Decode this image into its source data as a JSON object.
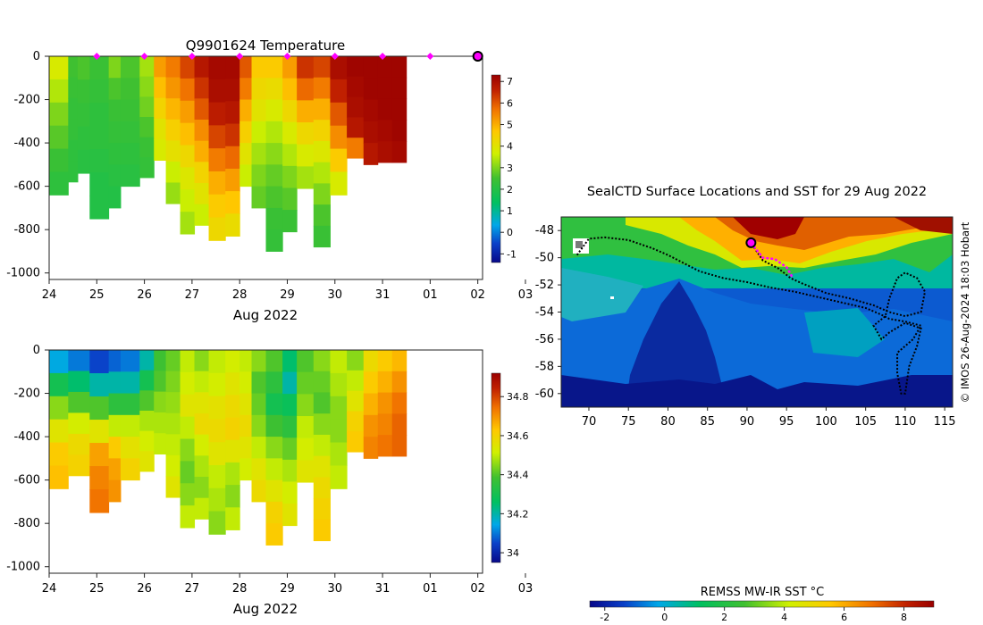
{
  "temperature_panel": {
    "title": "Q9901624  Temperature",
    "xlabel": "Aug 2022",
    "colorbar_ticks": [
      "-1",
      "0",
      "1",
      "2",
      "3",
      "4",
      "5",
      "6",
      "7"
    ]
  },
  "salinity_panel": {
    "xlabel": "Aug 2022",
    "colorbar_ticks": [
      "34",
      "34.2",
      "34.4",
      "34.6",
      "34.8"
    ]
  },
  "map_panel": {
    "title": "SealCTD Surface Locations and SST for 29 Aug 2022",
    "credit": "© IMOS 26-Aug-2024 18:03 Hobart",
    "sst_colorbar_label": "REMSS MW-IR SST °C",
    "sst_colorbar_ticks": [
      "-2",
      "0",
      "2",
      "4",
      "6",
      "8"
    ]
  },
  "chart_data": [
    {
      "type": "heatmap",
      "name": "depth-time temperature section",
      "title": "Q9901624  Temperature",
      "xlabel": "Aug 2022",
      "ylabel": "",
      "x_ticks": [
        "24",
        "25",
        "26",
        "27",
        "28",
        "29",
        "30",
        "31",
        "01",
        "02",
        "03"
      ],
      "y_ticks": [
        "0",
        "-200",
        "-400",
        "-600",
        "-800",
        "-1000"
      ],
      "xlim": [
        0,
        9.1
      ],
      "ylim": [
        -1030,
        0
      ],
      "colorbar": {
        "min": -1.4,
        "max": 7.3,
        "ticks": [
          -1,
          0,
          1,
          2,
          3,
          4,
          5,
          6,
          7
        ]
      },
      "profiles": [
        {
          "t": 0.0,
          "bottom": -640,
          "temps": [
            3.8,
            3.4,
            3.0,
            2.7,
            2.4,
            2.2
          ]
        },
        {
          "t": 0.4,
          "bottom": -580,
          "temps": [
            2.5,
            2.4,
            2.3,
            2.3,
            2.2,
            2.2
          ]
        },
        {
          "t": 0.6,
          "bottom": -540,
          "temps": [
            2.6,
            2.4,
            2.3,
            2.2,
            2.1
          ]
        },
        {
          "t": 0.85,
          "bottom": -750,
          "temps": [
            2.4,
            2.3,
            2.2,
            2.2,
            2.1,
            2.0,
            2.0
          ]
        },
        {
          "t": 1.25,
          "bottom": -700,
          "temps": [
            3.0,
            2.6,
            2.4,
            2.3,
            2.2,
            2.1,
            2.0
          ]
        },
        {
          "t": 1.5,
          "bottom": -600,
          "temps": [
            2.6,
            2.5,
            2.4,
            2.3,
            2.2,
            2.1
          ]
        },
        {
          "t": 1.9,
          "bottom": -560,
          "temps": [
            3.3,
            3.1,
            2.9,
            2.6,
            2.4,
            2.3
          ]
        },
        {
          "t": 2.2,
          "bottom": -480,
          "temps": [
            5.2,
            4.8,
            4.4,
            4.0,
            3.8
          ]
        },
        {
          "t": 2.45,
          "bottom": -680,
          "temps": [
            5.6,
            5.3,
            4.9,
            4.5,
            4.1,
            3.6,
            3.2
          ]
        },
        {
          "t": 2.75,
          "bottom": -820,
          "temps": [
            6.2,
            5.7,
            5.2,
            4.8,
            4.3,
            3.9,
            3.6,
            3.3
          ]
        },
        {
          "t": 3.05,
          "bottom": -780,
          "temps": [
            6.8,
            6.4,
            6.0,
            5.4,
            5.0,
            4.4,
            4.0,
            3.6
          ]
        },
        {
          "t": 3.35,
          "bottom": -850,
          "temps": [
            7.1,
            7.0,
            6.7,
            6.2,
            5.6,
            5.0,
            4.6,
            4.3
          ]
        },
        {
          "t": 3.7,
          "bottom": -830,
          "temps": [
            7.1,
            7.0,
            6.8,
            6.4,
            5.8,
            5.2,
            4.7,
            4.2
          ]
        },
        {
          "t": 4.0,
          "bottom": -600,
          "temps": [
            6.0,
            5.6,
            5.0,
            4.5,
            4.0,
            3.6
          ]
        },
        {
          "t": 4.25,
          "bottom": -700,
          "temps": [
            4.6,
            4.3,
            4.0,
            3.6,
            3.3,
            3.0,
            2.8
          ]
        },
        {
          "t": 4.55,
          "bottom": -900,
          "temps": [
            4.6,
            4.2,
            3.8,
            3.4,
            3.1,
            2.8,
            2.6,
            2.4,
            2.3
          ]
        },
        {
          "t": 4.9,
          "bottom": -810,
          "temps": [
            5.2,
            4.8,
            4.3,
            3.8,
            3.4,
            3.0,
            2.7,
            2.4
          ]
        },
        {
          "t": 5.2,
          "bottom": -610,
          "temps": [
            6.4,
            5.8,
            5.0,
            4.3,
            3.8,
            3.3
          ]
        },
        {
          "t": 5.55,
          "bottom": -880,
          "temps": [
            6.2,
            5.6,
            5.0,
            4.4,
            3.9,
            3.4,
            3.0,
            2.6,
            2.4
          ]
        },
        {
          "t": 5.9,
          "bottom": -640,
          "temps": [
            7.0,
            6.6,
            6.0,
            5.4,
            4.6,
            3.8
          ]
        },
        {
          "t": 6.25,
          "bottom": -470,
          "temps": [
            7.2,
            7.1,
            7.0,
            6.8,
            5.6
          ]
        },
        {
          "t": 6.6,
          "bottom": -500,
          "temps": [
            7.2,
            7.2,
            7.1,
            7.0,
            6.8
          ]
        },
        {
          "t": 6.9,
          "bottom": -490,
          "temps": [
            7.2,
            7.2,
            7.2,
            7.1,
            7.0
          ]
        },
        {
          "t": 7.2,
          "bottom": -490,
          "temps": [
            7.2,
            7.2,
            7.2,
            7.2,
            7.1
          ]
        }
      ],
      "surface_markers": [
        1,
        2,
        3,
        4,
        5,
        6,
        7,
        8,
        9
      ],
      "current_marker": 9.0
    },
    {
      "type": "heatmap",
      "name": "depth-time salinity section",
      "title": "",
      "xlabel": "Aug 2022",
      "x_ticks": [
        "24",
        "25",
        "26",
        "27",
        "28",
        "29",
        "30",
        "31",
        "01",
        "02",
        "03"
      ],
      "y_ticks": [
        "0",
        "-200",
        "-400",
        "-600",
        "-800",
        "-1000"
      ],
      "xlim": [
        0,
        9.1
      ],
      "ylim": [
        -1030,
        0
      ],
      "colorbar": {
        "min": 33.95,
        "max": 34.92,
        "ticks": [
          34,
          34.2,
          34.4,
          34.6,
          34.8
        ]
      },
      "profiles": [
        {
          "t": 0.0,
          "bottom": -640,
          "sal": [
            34.15,
            34.3,
            34.45,
            34.55,
            34.62,
            34.64
          ]
        },
        {
          "t": 0.4,
          "bottom": -580,
          "sal": [
            34.1,
            34.25,
            34.4,
            34.52,
            34.58,
            34.6
          ]
        },
        {
          "t": 0.85,
          "bottom": -750,
          "sal": [
            34.05,
            34.2,
            34.4,
            34.55,
            34.68,
            34.72,
            34.74
          ]
        },
        {
          "t": 1.25,
          "bottom": -700,
          "sal": [
            34.08,
            34.2,
            34.35,
            34.5,
            34.62,
            34.68,
            34.7
          ]
        },
        {
          "t": 1.5,
          "bottom": -600,
          "sal": [
            34.1,
            34.2,
            34.35,
            34.5,
            34.56,
            34.6
          ]
        },
        {
          "t": 1.9,
          "bottom": -560,
          "sal": [
            34.2,
            34.3,
            34.4,
            34.48,
            34.52,
            34.55
          ]
        },
        {
          "t": 2.2,
          "bottom": -480,
          "sal": [
            34.38,
            34.4,
            34.45,
            34.48,
            34.5
          ]
        },
        {
          "t": 2.45,
          "bottom": -680,
          "sal": [
            34.42,
            34.44,
            34.46,
            34.48,
            34.5,
            34.52,
            34.55
          ]
        },
        {
          "t": 2.75,
          "bottom": -820,
          "sal": [
            34.5,
            34.52,
            34.55,
            34.5,
            34.45,
            34.42,
            34.45,
            34.5
          ]
        },
        {
          "t": 3.05,
          "bottom": -780,
          "sal": [
            34.45,
            34.5,
            34.55,
            34.58,
            34.52,
            34.48,
            34.45,
            34.5
          ]
        },
        {
          "t": 3.35,
          "bottom": -850,
          "sal": [
            34.5,
            34.52,
            34.56,
            34.58,
            34.55,
            34.5,
            34.48,
            34.45
          ]
        },
        {
          "t": 3.7,
          "bottom": -830,
          "sal": [
            34.52,
            34.55,
            34.58,
            34.6,
            34.55,
            34.48,
            34.45,
            34.5
          ]
        },
        {
          "t": 4.0,
          "bottom": -600,
          "sal": [
            34.5,
            34.52,
            34.55,
            34.58,
            34.55,
            34.52
          ]
        },
        {
          "t": 4.25,
          "bottom": -700,
          "sal": [
            34.45,
            34.4,
            34.42,
            34.45,
            34.5,
            34.55,
            34.58
          ]
        },
        {
          "t": 4.55,
          "bottom": -900,
          "sal": [
            34.4,
            34.35,
            34.3,
            34.38,
            34.45,
            34.5,
            34.55,
            34.6,
            34.62
          ]
        },
        {
          "t": 4.9,
          "bottom": -810,
          "sal": [
            34.25,
            34.2,
            34.28,
            34.35,
            34.42,
            34.48,
            34.52,
            34.55
          ]
        },
        {
          "t": 5.2,
          "bottom": -610,
          "sal": [
            34.4,
            34.42,
            34.45,
            34.5,
            34.52,
            34.55
          ]
        },
        {
          "t": 5.55,
          "bottom": -880,
          "sal": [
            34.45,
            34.42,
            34.4,
            34.45,
            34.5,
            34.55,
            34.58,
            34.6,
            34.62
          ]
        },
        {
          "t": 5.9,
          "bottom": -640,
          "sal": [
            34.5,
            34.48,
            34.45,
            34.45,
            34.48,
            34.5
          ]
        },
        {
          "t": 6.25,
          "bottom": -470,
          "sal": [
            34.45,
            34.5,
            34.55,
            34.6,
            34.62
          ]
        },
        {
          "t": 6.6,
          "bottom": -500,
          "sal": [
            34.58,
            34.62,
            34.66,
            34.7,
            34.72
          ]
        },
        {
          "t": 6.9,
          "bottom": -490,
          "sal": [
            34.62,
            34.66,
            34.7,
            34.72,
            34.74
          ]
        },
        {
          "t": 7.2,
          "bottom": -490,
          "sal": [
            34.65,
            34.7,
            34.74,
            34.76,
            34.76
          ]
        }
      ]
    },
    {
      "type": "heatmap",
      "name": "surface locations and SST map",
      "title": "SealCTD Surface Locations and SST for 29 Aug 2022",
      "x_ticks": [
        "70",
        "75",
        "80",
        "85",
        "90",
        "95",
        "100",
        "105",
        "110",
        "115"
      ],
      "y_ticks": [
        "-48",
        "-50",
        "-52",
        "-54",
        "-56",
        "-58",
        "-60"
      ],
      "xlim": [
        66.5,
        116
      ],
      "ylim": [
        -61,
        -47
      ],
      "colorbar": {
        "label": "REMSS MW-IR SST °C",
        "min": -2.5,
        "max": 9,
        "ticks": [
          -2,
          0,
          2,
          4,
          6,
          8
        ]
      },
      "track": [
        [
          68.5,
          -49.8
        ],
        [
          70,
          -48.6
        ],
        [
          72,
          -48.5
        ],
        [
          75,
          -48.7
        ],
        [
          78,
          -49.3
        ],
        [
          80,
          -49.8
        ],
        [
          82,
          -50.4
        ],
        [
          84,
          -51.0
        ],
        [
          87,
          -51.5
        ],
        [
          90,
          -51.8
        ],
        [
          93,
          -52.2
        ],
        [
          96,
          -52.5
        ],
        [
          99,
          -52.9
        ],
        [
          102,
          -53.3
        ],
        [
          105,
          -53.7
        ],
        [
          107,
          -54.2
        ],
        [
          108,
          -54.5
        ],
        [
          110,
          -54.7
        ],
        [
          112,
          -55.0
        ],
        [
          111,
          -56.0
        ],
        [
          109,
          -57.0
        ],
        [
          109,
          -58.5
        ],
        [
          109.5,
          -60.0
        ],
        [
          110,
          -60.0
        ],
        [
          110.5,
          -58.0
        ],
        [
          111.5,
          -56.5
        ],
        [
          112,
          -55.2
        ],
        [
          110,
          -54.8
        ],
        [
          108,
          -55.5
        ],
        [
          107,
          -56.0
        ],
        [
          106,
          -55.0
        ],
        [
          107.5,
          -54.3
        ],
        [
          108,
          -53.0
        ],
        [
          109,
          -51.5
        ],
        [
          110,
          -51.1
        ],
        [
          111.5,
          -51.5
        ],
        [
          112.5,
          -52.5
        ],
        [
          112,
          -54.0
        ],
        [
          110,
          -54.3
        ],
        [
          108,
          -54.0
        ],
        [
          106,
          -53.5
        ],
        [
          103,
          -53.0
        ],
        [
          100,
          -52.6
        ],
        [
          97,
          -51.9
        ],
        [
          95.5,
          -51.5
        ],
        [
          94,
          -50.8
        ],
        [
          92,
          -50.2
        ],
        [
          90.5,
          -48.9
        ]
      ],
      "highlight_track": [
        [
          90.5,
          -48.9
        ],
        [
          92,
          -50
        ],
        [
          93.5,
          -50.1
        ],
        [
          95,
          -50.7
        ],
        [
          95.8,
          -51.5
        ]
      ],
      "current_location": [
        90.5,
        -48.9
      ]
    }
  ]
}
